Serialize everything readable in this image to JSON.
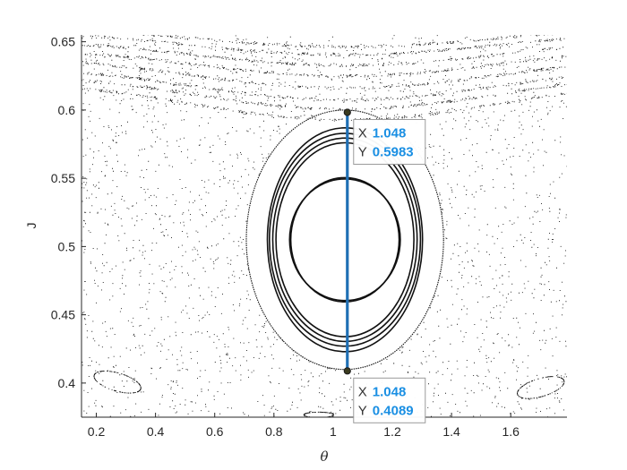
{
  "chart_data": {
    "type": "scatter",
    "title": "",
    "xlabel": "θ",
    "ylabel": "J",
    "xlim": [
      0.15,
      1.79
    ],
    "ylim": [
      0.375,
      0.655
    ],
    "xticks": [
      "0.2",
      "0.4",
      "0.6",
      "0.8",
      "1",
      "1.2",
      "1.4",
      "1.6"
    ],
    "yticks": [
      "0.4",
      "0.45",
      "0.5",
      "0.55",
      "0.6",
      "0.65"
    ],
    "xtick_values": [
      0.2,
      0.4,
      0.6,
      0.8,
      1.0,
      1.2,
      1.4,
      1.6
    ],
    "ytick_values": [
      0.4,
      0.45,
      0.5,
      0.55,
      0.6,
      0.65
    ],
    "grid": false,
    "legend": "none",
    "colors": {
      "points": "#000000",
      "marker_line": "#1f6fb4",
      "tip_value": "#1a8fe3",
      "axes": "#262626"
    },
    "island_center": {
      "theta": 1.04,
      "J": 0.505
    },
    "invariant_curves": [
      {
        "a": 0.183,
        "b": 0.0455
      },
      {
        "a": 0.187,
        "b": 0.0445
      },
      {
        "a": 0.233,
        "b": 0.071
      },
      {
        "a": 0.244,
        "b": 0.0745
      },
      {
        "a": 0.255,
        "b": 0.078
      },
      {
        "a": 0.262,
        "b": 0.082
      },
      {
        "a": 0.333,
        "b": 0.095
      }
    ],
    "marker_line": {
      "x": 1.048,
      "y_from": 0.4089,
      "y_to": 0.5983
    },
    "datatips": [
      {
        "x_key": "X",
        "x_value": "1.048",
        "y_key": "Y",
        "y_value": "0.5983",
        "x": 1.048,
        "y": 0.5983
      },
      {
        "x_key": "X",
        "x_value": "1.048",
        "y_key": "Y",
        "y_value": "0.4089",
        "x": 1.048,
        "y": 0.4089
      }
    ]
  }
}
